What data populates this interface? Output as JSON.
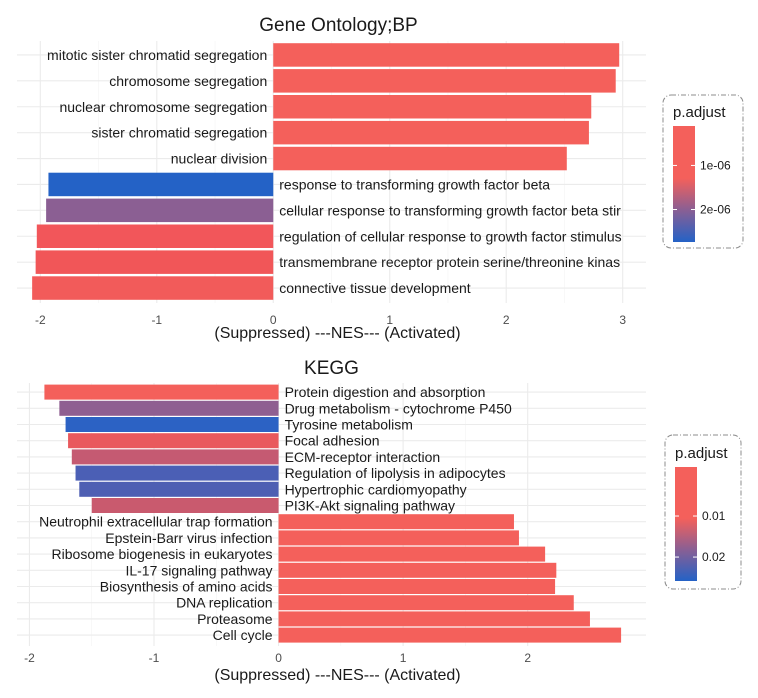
{
  "chart_data": [
    {
      "type": "bar",
      "orientation": "horizontal",
      "title": "Gene Ontology;BP",
      "xlabel": "(Suppressed) ---NES--- (Activated)",
      "xlim": [
        -2.2,
        3.2
      ],
      "xticks": [
        -2,
        -1,
        0,
        1,
        2,
        3
      ],
      "categories": [
        "mitotic sister chromatid segregation",
        "chromosome segregation",
        "nuclear chromosome segregation",
        "sister chromatid segregation",
        "nuclear division",
        "response to transforming growth factor beta",
        "cellular response to transforming growth factor beta stir",
        "regulation of cellular response to growth factor stimulus",
        "transmembrane receptor protein serine/threonine kinas",
        "connective tissue development"
      ],
      "values": [
        2.97,
        2.94,
        2.73,
        2.71,
        2.52,
        -1.93,
        -1.95,
        -2.03,
        -2.04,
        -2.07
      ],
      "colors": [
        "#f4605b",
        "#f4605b",
        "#f4605b",
        "#f4605b",
        "#f4605b",
        "#2462c6",
        "#8b5f93",
        "#f2565a",
        "#f15658",
        "#f25b5a"
      ],
      "grid": true,
      "legend": {
        "title": "p.adjust",
        "position": "right",
        "ticks": [
          "1e-06",
          "2e-06"
        ],
        "tick_fracs": [
          0.34,
          0.72
        ],
        "color_top": "#f4605b",
        "color_mid": "#8b5f93",
        "color_bottom": "#2462c6"
      }
    },
    {
      "type": "bar",
      "orientation": "horizontal",
      "title": "KEGG",
      "xlabel": "(Suppressed) ---NES--- (Activated)",
      "xlim": [
        -2.1,
        2.95
      ],
      "xticks": [
        -2,
        -1,
        0,
        1,
        2
      ],
      "categories": [
        "Protein digestion and absorption",
        "Drug metabolism - cytochrome P450",
        "Tyrosine metabolism",
        "Focal adhesion",
        "ECM-receptor interaction",
        "Regulation of lipolysis in adipocytes",
        "Hypertrophic cardiomyopathy",
        "PI3K-Akt signaling pathway",
        "Neutrophil extracellular trap formation",
        "Epstein-Barr virus infection",
        "Ribosome biogenesis in eukaryotes",
        "IL-17 signaling pathway",
        "Biosynthesis of amino acids",
        "DNA replication",
        "Proteasome",
        "Cell cycle"
      ],
      "values": [
        -1.88,
        -1.76,
        -1.71,
        -1.69,
        -1.66,
        -1.63,
        -1.6,
        -1.5,
        1.89,
        1.93,
        2.14,
        2.23,
        2.22,
        2.37,
        2.5,
        2.75
      ],
      "colors": [
        "#f4605b",
        "#8f5f91",
        "#2c62c4",
        "#e9595d",
        "#c55a72",
        "#4b5fb5",
        "#4e5fb3",
        "#c95a6e",
        "#f4605b",
        "#f4605b",
        "#f4605b",
        "#f4605b",
        "#f4605b",
        "#f4605b",
        "#f4605b",
        "#f4605b"
      ],
      "grid": true,
      "legend": {
        "title": "p.adjust",
        "position": "right",
        "ticks": [
          "0.01",
          "0.02"
        ],
        "tick_fracs": [
          0.43,
          0.79
        ],
        "color_top": "#f4605b",
        "color_mid": "#8b5f93",
        "color_bottom": "#2462c6"
      }
    }
  ]
}
